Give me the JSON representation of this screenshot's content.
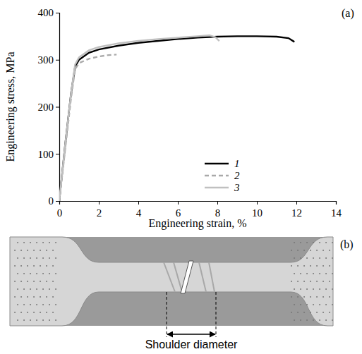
{
  "chart_data": {
    "type": "line",
    "panel": "(a)",
    "x_label": "Engineering strain, %",
    "y_label": "Engineering stress, MPa",
    "xlim": [
      0,
      14
    ],
    "xticks": [
      0,
      2,
      4,
      6,
      8,
      10,
      12,
      14
    ],
    "ylim": [
      0,
      400
    ],
    "yticks": [
      0,
      100,
      200,
      300,
      400
    ],
    "legend": "lower right",
    "grid": false,
    "series": [
      {
        "name": "1",
        "color": "#000000",
        "line_style": "solid",
        "x": [
          0,
          0.3,
          0.6,
          0.8,
          1.0,
          1.5,
          2,
          3,
          4,
          5,
          6,
          7,
          8,
          9,
          10,
          11,
          11.6,
          11.9
        ],
        "values": [
          0,
          120,
          230,
          285,
          300,
          315,
          322,
          330,
          336,
          340,
          344,
          347,
          349,
          350,
          350,
          349,
          346,
          338
        ]
      },
      {
        "name": "2",
        "color": "#a9a9a9",
        "line_style": "dashed",
        "x": [
          0,
          0.3,
          0.6,
          0.8,
          1.0,
          1.5,
          2,
          2.5,
          2.9
        ],
        "values": [
          0,
          110,
          220,
          280,
          293,
          302,
          307,
          310,
          311
        ]
      },
      {
        "name": "3",
        "color": "#c0c0c0",
        "line_style": "solid",
        "x": [
          0,
          0.3,
          0.6,
          0.8,
          1.0,
          1.5,
          2,
          3,
          4,
          5,
          6,
          7,
          7.6,
          7.9,
          8.1
        ],
        "values": [
          0,
          120,
          230,
          290,
          305,
          320,
          327,
          335,
          340,
          344,
          347,
          350,
          352,
          348,
          340
        ]
      }
    ]
  },
  "photo": {
    "panel": "(b)",
    "caption": "Shoulder diameter"
  }
}
